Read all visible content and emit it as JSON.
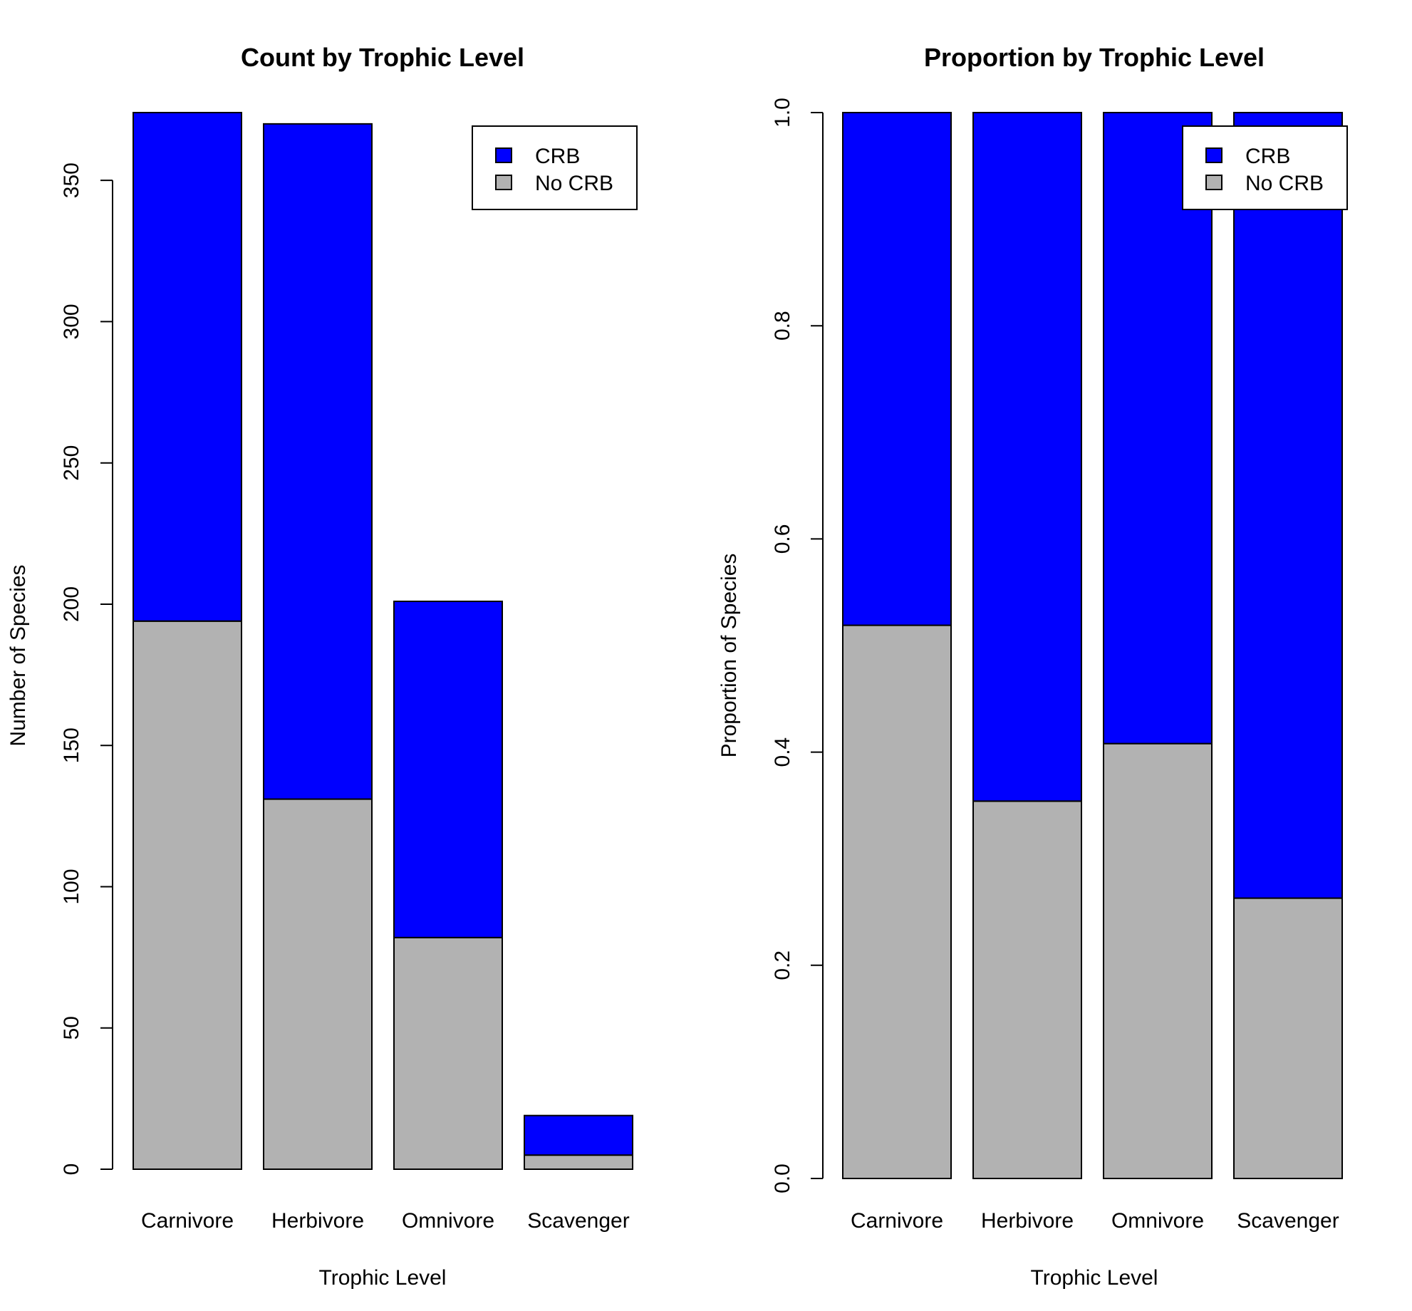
{
  "colors": {
    "crb": "#0000ff",
    "no_crb": "#b2b2b2",
    "outline": "#000000",
    "background": "#ffffff"
  },
  "chart_data": [
    {
      "type": "bar",
      "stacked": true,
      "title": "Count by Trophic Level",
      "xlabel": "Trophic Level",
      "ylabel": "Number of Species",
      "categories": [
        "Carnivore",
        "Herbivore",
        "Omnivore",
        "Scavenger"
      ],
      "series": [
        {
          "name": "No CRB",
          "values": [
            194,
            131,
            82,
            5
          ]
        },
        {
          "name": "CRB",
          "values": [
            180,
            239,
            119,
            14
          ]
        }
      ],
      "totals": [
        374,
        370,
        201,
        19
      ],
      "ylim": [
        0,
        374
      ],
      "yticks": [
        0,
        50,
        100,
        150,
        200,
        250,
        300,
        350
      ],
      "legend": {
        "position": "top-right",
        "entries": [
          "CRB",
          "No CRB"
        ]
      },
      "grid": false
    },
    {
      "type": "bar",
      "stacked": true,
      "title": "Proportion by Trophic Level",
      "xlabel": "Trophic Level",
      "ylabel": "Proportion of Species",
      "categories": [
        "Carnivore",
        "Herbivore",
        "Omnivore",
        "Scavenger"
      ],
      "series": [
        {
          "name": "No CRB",
          "values": [
            0.519,
            0.354,
            0.408,
            0.263
          ]
        },
        {
          "name": "CRB",
          "values": [
            0.481,
            0.646,
            0.592,
            0.737
          ]
        }
      ],
      "ylim": [
        0,
        1
      ],
      "yticks": [
        "0.0",
        "0.2",
        "0.4",
        "0.6",
        "0.8",
        "1.0"
      ],
      "legend": {
        "position": "top-right",
        "entries": [
          "CRB",
          "No CRB"
        ]
      },
      "grid": false
    }
  ]
}
